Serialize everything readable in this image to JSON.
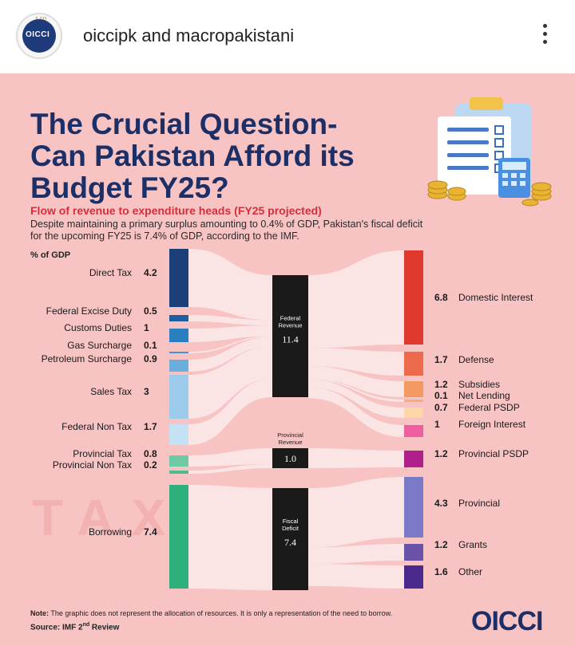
{
  "header": {
    "account_names": "oiccipk and macropakistani",
    "avatar_text": "OICCI",
    "avatar_top_text": "MP",
    "more_icon": "more-vertical-icon"
  },
  "post": {
    "title_lines": [
      "The Crucial Question-",
      "Can Pakistan Afford its",
      "Budget FY25?"
    ],
    "subtitle": "Flow of revenue to expenditure heads (FY25 projected)",
    "description": "Despite maintaining a primary surplus amounting to 0.4% of GDP, Pakistan's fiscal deficit for the upcoming FY25 is 7.4% of GDP, according to the IMF.",
    "unit": "% of GDP",
    "watermark": "TAX",
    "note_label": "Note:",
    "note": "The graphic does not represent the allocation of resources. It is only a representation of the need to borrow.",
    "source_label": "Source: IMF 2",
    "source_sup": "nd",
    "source_suffix": " Review",
    "logo": "OICCI"
  },
  "colors": {
    "background": "#f7c3c3",
    "title": "#1c2f66",
    "subtitle": "#d3303b",
    "node_dark": "#1a1a1a"
  },
  "chart_data": {
    "type": "sankey",
    "unit": "% of GDP",
    "sources": [
      {
        "name": "Direct Tax",
        "value": "4.2",
        "color": "#1c3f7a"
      },
      {
        "name": "Federal Excise Duty",
        "value": "0.5",
        "color": "#1f5fa0"
      },
      {
        "name": "Customs Duties",
        "value": "1",
        "color": "#2a7fc0"
      },
      {
        "name": "Gas Surcharge",
        "value": "0.1",
        "color": "#4a92cc"
      },
      {
        "name": "Petroleum Surcharge",
        "value": "0.9",
        "color": "#6aaedc"
      },
      {
        "name": "Sales Tax",
        "value": "3",
        "color": "#9ccbec"
      },
      {
        "name": "Federal Non Tax",
        "value": "1.7",
        "color": "#c5e2f4"
      },
      {
        "name": "Provincial Tax",
        "value": "0.8",
        "color": "#6ccaa4"
      },
      {
        "name": "Provincial Non Tax",
        "value": "0.2",
        "color": "#4fbc8e"
      },
      {
        "name": "Borrowing",
        "value": "7.4",
        "color": "#2fb07a"
      }
    ],
    "middle": [
      {
        "name_lines": [
          "Federal",
          "Revenue"
        ],
        "value": "11.4"
      },
      {
        "name_lines": [
          "Provincial",
          "Revenue"
        ],
        "value": "1.0"
      },
      {
        "name_lines": [
          "Fiscal",
          "Deficit"
        ],
        "value": "7.4"
      }
    ],
    "targets": [
      {
        "name": "Domestic Interest",
        "value": "6.8",
        "color": "#e03a2e"
      },
      {
        "name": "Defense",
        "value": "1.7",
        "color": "#ee6a4c"
      },
      {
        "name": "Subsidies",
        "value": "1.2",
        "color": "#f39a62"
      },
      {
        "name": "Net Lending",
        "value": "0.1",
        "color": "#f5ae7a"
      },
      {
        "name": "Federal PSDP",
        "value": "0.7",
        "color": "#fbd6a6"
      },
      {
        "name": "Foreign Interest",
        "value": "1",
        "color": "#ee5ea0"
      },
      {
        "name": "Provincial PSDP",
        "value": "1.2",
        "color": "#b0208a"
      },
      {
        "name": "Provincial",
        "value": "4.3",
        "color": "#7a7ac6"
      },
      {
        "name": "Grants",
        "value": "1.2",
        "color": "#6a52a8"
      },
      {
        "name": "Other",
        "value": "1.6",
        "color": "#4a2a8c"
      }
    ]
  }
}
